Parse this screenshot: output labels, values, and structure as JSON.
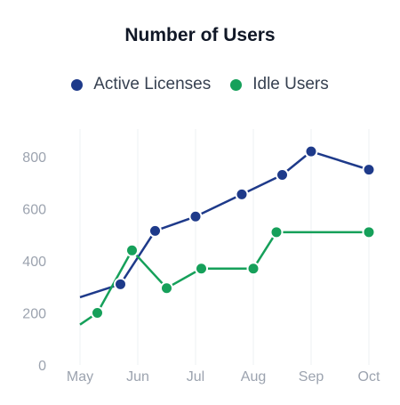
{
  "chart_data": {
    "type": "line",
    "title": "Number of Users",
    "x_ticks": [
      "May",
      "Jun",
      "Jul",
      "Aug",
      "Sep",
      "Oct"
    ],
    "y_ticks": [
      0,
      200,
      400,
      600,
      800
    ],
    "ylim": [
      0,
      900
    ],
    "grid": "vertical",
    "legend_position": "top-center",
    "series": [
      {
        "name": "Active Licenses",
        "color": "#1e3a8a",
        "points": [
          [
            0.0,
            260
          ],
          [
            0.7,
            310
          ],
          [
            1.3,
            515
          ],
          [
            2.0,
            570
          ],
          [
            2.8,
            655
          ],
          [
            3.5,
            730
          ],
          [
            4.0,
            820
          ],
          [
            5.0,
            750
          ]
        ]
      },
      {
        "name": "Idle Users",
        "color": "#16a05a",
        "points": [
          [
            0.0,
            155
          ],
          [
            0.3,
            200
          ],
          [
            0.9,
            440
          ],
          [
            1.5,
            295
          ],
          [
            2.1,
            370
          ],
          [
            3.0,
            370
          ],
          [
            3.4,
            510
          ],
          [
            5.0,
            510
          ]
        ]
      }
    ]
  }
}
